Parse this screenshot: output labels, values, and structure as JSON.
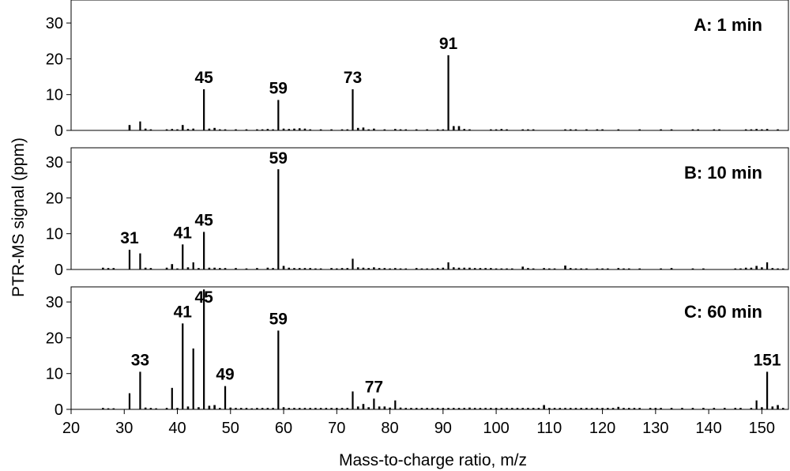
{
  "chart_data": {
    "type": "bar",
    "xlabel": "Mass-to-charge ratio, m/z",
    "ylabel": "PTR-MS signal (ppm)",
    "xlim": [
      20,
      155
    ],
    "x_ticks": [
      20,
      30,
      40,
      50,
      60,
      70,
      80,
      90,
      100,
      110,
      120,
      130,
      140,
      150
    ],
    "ylim": [
      0,
      35
    ],
    "y_ticks": [
      0,
      10,
      20,
      30
    ],
    "grid": false,
    "panels": [
      {
        "title": "A: 1 min",
        "peak_labels": [
          {
            "text": "45",
            "x": 45,
            "y": 11.5
          },
          {
            "text": "59",
            "x": 59,
            "y": 8.5
          },
          {
            "text": "73",
            "x": 73,
            "y": 11.5
          },
          {
            "text": "91",
            "x": 91,
            "y": 21
          }
        ],
        "points": [
          [
            31,
            1.5
          ],
          [
            33,
            2.5
          ],
          [
            34,
            0.5
          ],
          [
            35,
            0.3
          ],
          [
            38,
            0.3
          ],
          [
            39,
            0.4
          ],
          [
            40,
            0.3
          ],
          [
            41,
            1.5
          ],
          [
            42,
            0.4
          ],
          [
            43,
            0.5
          ],
          [
            45,
            11.5
          ],
          [
            46,
            0.5
          ],
          [
            47,
            0.7
          ],
          [
            48,
            0.3
          ],
          [
            49,
            0.3
          ],
          [
            51,
            0.3
          ],
          [
            53,
            0.3
          ],
          [
            55,
            0.3
          ],
          [
            56,
            0.3
          ],
          [
            57,
            0.4
          ],
          [
            58,
            0.3
          ],
          [
            59,
            8.5
          ],
          [
            60,
            0.5
          ],
          [
            61,
            0.4
          ],
          [
            62,
            0.5
          ],
          [
            63,
            0.6
          ],
          [
            64,
            0.5
          ],
          [
            65,
            0.3
          ],
          [
            67,
            0.3
          ],
          [
            69,
            0.3
          ],
          [
            71,
            0.3
          ],
          [
            72,
            0.3
          ],
          [
            73,
            11.5
          ],
          [
            74,
            0.7
          ],
          [
            75,
            0.8
          ],
          [
            76,
            0.3
          ],
          [
            77,
            0.5
          ],
          [
            79,
            0.3
          ],
          [
            81,
            0.4
          ],
          [
            82,
            0.3
          ],
          [
            83,
            0.3
          ],
          [
            85,
            0.3
          ],
          [
            87,
            0.3
          ],
          [
            89,
            0.3
          ],
          [
            90,
            0.3
          ],
          [
            91,
            21
          ],
          [
            92,
            1.2
          ],
          [
            93,
            1.2
          ],
          [
            94,
            0.4
          ],
          [
            95,
            0.3
          ],
          [
            99,
            0.3
          ],
          [
            100,
            0.3
          ],
          [
            101,
            0.4
          ],
          [
            102,
            0.3
          ],
          [
            105,
            0.3
          ],
          [
            106,
            0.3
          ],
          [
            107,
            0.3
          ],
          [
            113,
            0.3
          ],
          [
            114,
            0.3
          ],
          [
            115,
            0.3
          ],
          [
            117,
            0.3
          ],
          [
            119,
            0.3
          ],
          [
            120,
            0.3
          ],
          [
            123,
            0.3
          ],
          [
            127,
            0.3
          ],
          [
            131,
            0.3
          ],
          [
            133,
            0.3
          ],
          [
            137,
            0.3
          ],
          [
            138,
            0.3
          ],
          [
            141,
            0.3
          ],
          [
            142,
            0.3
          ],
          [
            147,
            0.3
          ],
          [
            148,
            0.3
          ],
          [
            149,
            0.4
          ],
          [
            150,
            0.3
          ],
          [
            151,
            0.4
          ],
          [
            153,
            0.3
          ]
        ]
      },
      {
        "title": "B: 10 min",
        "peak_labels": [
          {
            "text": "31",
            "x": 31,
            "y": 5.5
          },
          {
            "text": "41",
            "x": 41,
            "y": 7
          },
          {
            "text": "45",
            "x": 45,
            "y": 10.5
          },
          {
            "text": "59",
            "x": 59,
            "y": 28
          }
        ],
        "points": [
          [
            26,
            0.5
          ],
          [
            27,
            0.4
          ],
          [
            28,
            0.4
          ],
          [
            31,
            5.5
          ],
          [
            33,
            4.5
          ],
          [
            34,
            0.5
          ],
          [
            35,
            0.4
          ],
          [
            38,
            0.5
          ],
          [
            39,
            1.5
          ],
          [
            40,
            0.3
          ],
          [
            41,
            7
          ],
          [
            42,
            0.6
          ],
          [
            43,
            2
          ],
          [
            44,
            0.4
          ],
          [
            45,
            10.5
          ],
          [
            46,
            0.5
          ],
          [
            47,
            0.5
          ],
          [
            48,
            0.4
          ],
          [
            49,
            0.4
          ],
          [
            51,
            0.4
          ],
          [
            53,
            0.3
          ],
          [
            55,
            0.4
          ],
          [
            57,
            0.5
          ],
          [
            58,
            0.4
          ],
          [
            59,
            28
          ],
          [
            60,
            1
          ],
          [
            61,
            0.5
          ],
          [
            62,
            0.4
          ],
          [
            63,
            0.4
          ],
          [
            64,
            0.4
          ],
          [
            65,
            0.4
          ],
          [
            66,
            0.3
          ],
          [
            67,
            0.3
          ],
          [
            69,
            0.4
          ],
          [
            70,
            0.3
          ],
          [
            71,
            0.4
          ],
          [
            72,
            0.4
          ],
          [
            73,
            3
          ],
          [
            74,
            0.6
          ],
          [
            75,
            0.5
          ],
          [
            76,
            0.4
          ],
          [
            77,
            0.6
          ],
          [
            78,
            0.4
          ],
          [
            79,
            0.4
          ],
          [
            80,
            0.3
          ],
          [
            81,
            0.4
          ],
          [
            82,
            0.3
          ],
          [
            83,
            0.3
          ],
          [
            85,
            0.4
          ],
          [
            86,
            0.3
          ],
          [
            87,
            0.3
          ],
          [
            88,
            0.3
          ],
          [
            89,
            0.4
          ],
          [
            90,
            0.5
          ],
          [
            91,
            2
          ],
          [
            92,
            0.6
          ],
          [
            93,
            0.5
          ],
          [
            94,
            0.5
          ],
          [
            95,
            0.5
          ],
          [
            96,
            0.4
          ],
          [
            97,
            0.4
          ],
          [
            98,
            0.4
          ],
          [
            99,
            0.4
          ],
          [
            100,
            0.3
          ],
          [
            101,
            0.3
          ],
          [
            102,
            0.3
          ],
          [
            103,
            0.3
          ],
          [
            105,
            0.8
          ],
          [
            106,
            0.4
          ],
          [
            107,
            0.3
          ],
          [
            109,
            0.4
          ],
          [
            110,
            0.3
          ],
          [
            111,
            0.3
          ],
          [
            113,
            1.1
          ],
          [
            114,
            0.4
          ],
          [
            115,
            0.3
          ],
          [
            116,
            0.3
          ],
          [
            117,
            0.3
          ],
          [
            119,
            0.3
          ],
          [
            120,
            0.3
          ],
          [
            121,
            0.3
          ],
          [
            123,
            0.4
          ],
          [
            124,
            0.3
          ],
          [
            125,
            0.3
          ],
          [
            127,
            0.3
          ],
          [
            131,
            0.3
          ],
          [
            133,
            0.4
          ],
          [
            137,
            0.3
          ],
          [
            139,
            0.3
          ],
          [
            145,
            0.3
          ],
          [
            146,
            0.3
          ],
          [
            147,
            0.5
          ],
          [
            148,
            0.5
          ],
          [
            149,
            1
          ],
          [
            150,
            0.6
          ],
          [
            151,
            2
          ],
          [
            152,
            0.4
          ],
          [
            153,
            0.3
          ],
          [
            154,
            0.3
          ]
        ]
      },
      {
        "title": "C: 60 min",
        "peak_labels": [
          {
            "text": "33",
            "x": 33,
            "y": 10.5
          },
          {
            "text": "41",
            "x": 41,
            "y": 24
          },
          {
            "text": "45",
            "x": 45,
            "y": 33.5
          },
          {
            "text": "49",
            "x": 49,
            "y": 6.5
          },
          {
            "text": "59",
            "x": 59,
            "y": 22
          },
          {
            "text": "77",
            "x": 77,
            "y": 3
          },
          {
            "text": "151",
            "x": 151,
            "y": 10.5
          }
        ],
        "points": [
          [
            26,
            0.4
          ],
          [
            27,
            0.3
          ],
          [
            28,
            0.3
          ],
          [
            31,
            4.5
          ],
          [
            33,
            10.5
          ],
          [
            34,
            0.5
          ],
          [
            35,
            0.4
          ],
          [
            36,
            0.3
          ],
          [
            38,
            0.4
          ],
          [
            39,
            6
          ],
          [
            40,
            0.4
          ],
          [
            41,
            24
          ],
          [
            42,
            0.8
          ],
          [
            43,
            17
          ],
          [
            44,
            0.6
          ],
          [
            45,
            33.5
          ],
          [
            46,
            1
          ],
          [
            47,
            1.2
          ],
          [
            48,
            0.4
          ],
          [
            49,
            6.5
          ],
          [
            50,
            0.5
          ],
          [
            51,
            0.4
          ],
          [
            52,
            0.4
          ],
          [
            53,
            0.4
          ],
          [
            54,
            0.3
          ],
          [
            55,
            0.4
          ],
          [
            56,
            0.4
          ],
          [
            57,
            0.4
          ],
          [
            58,
            0.4
          ],
          [
            59,
            22
          ],
          [
            60,
            0.6
          ],
          [
            61,
            0.4
          ],
          [
            62,
            0.4
          ],
          [
            63,
            0.4
          ],
          [
            64,
            0.4
          ],
          [
            65,
            0.4
          ],
          [
            66,
            0.4
          ],
          [
            67,
            0.4
          ],
          [
            68,
            0.4
          ],
          [
            69,
            0.4
          ],
          [
            70,
            0.4
          ],
          [
            71,
            0.4
          ],
          [
            72,
            0.4
          ],
          [
            73,
            5
          ],
          [
            74,
            0.8
          ],
          [
            75,
            1.5
          ],
          [
            76,
            0.6
          ],
          [
            77,
            3
          ],
          [
            78,
            0.8
          ],
          [
            79,
            0.8
          ],
          [
            80,
            0.5
          ],
          [
            81,
            2.5
          ],
          [
            82,
            0.5
          ],
          [
            83,
            0.4
          ],
          [
            84,
            0.4
          ],
          [
            85,
            0.4
          ],
          [
            86,
            0.4
          ],
          [
            87,
            0.4
          ],
          [
            88,
            0.4
          ],
          [
            89,
            0.4
          ],
          [
            90,
            0.4
          ],
          [
            91,
            0.4
          ],
          [
            92,
            0.4
          ],
          [
            93,
            0.4
          ],
          [
            94,
            0.4
          ],
          [
            95,
            0.5
          ],
          [
            96,
            0.4
          ],
          [
            97,
            0.4
          ],
          [
            98,
            0.4
          ],
          [
            99,
            0.4
          ],
          [
            100,
            0.4
          ],
          [
            101,
            0.4
          ],
          [
            102,
            0.4
          ],
          [
            103,
            0.4
          ],
          [
            104,
            0.4
          ],
          [
            105,
            0.4
          ],
          [
            106,
            0.4
          ],
          [
            107,
            0.4
          ],
          [
            108,
            0.4
          ],
          [
            109,
            1.2
          ],
          [
            110,
            0.4
          ],
          [
            111,
            0.4
          ],
          [
            112,
            0.4
          ],
          [
            113,
            0.4
          ],
          [
            114,
            0.4
          ],
          [
            115,
            0.4
          ],
          [
            116,
            0.4
          ],
          [
            117,
            0.4
          ],
          [
            118,
            0.4
          ],
          [
            119,
            0.4
          ],
          [
            120,
            0.4
          ],
          [
            121,
            0.4
          ],
          [
            122,
            0.4
          ],
          [
            123,
            0.7
          ],
          [
            124,
            0.4
          ],
          [
            125,
            0.4
          ],
          [
            126,
            0.4
          ],
          [
            127,
            0.4
          ],
          [
            129,
            0.4
          ],
          [
            130,
            0.4
          ],
          [
            131,
            0.4
          ],
          [
            133,
            0.4
          ],
          [
            135,
            0.4
          ],
          [
            137,
            0.4
          ],
          [
            139,
            0.4
          ],
          [
            141,
            0.4
          ],
          [
            143,
            0.4
          ],
          [
            145,
            0.4
          ],
          [
            146,
            0.4
          ],
          [
            148,
            0.4
          ],
          [
            149,
            2.5
          ],
          [
            150,
            0.6
          ],
          [
            151,
            10.5
          ],
          [
            152,
            0.8
          ],
          [
            153,
            1.2
          ],
          [
            154,
            0.4
          ]
        ]
      }
    ]
  }
}
